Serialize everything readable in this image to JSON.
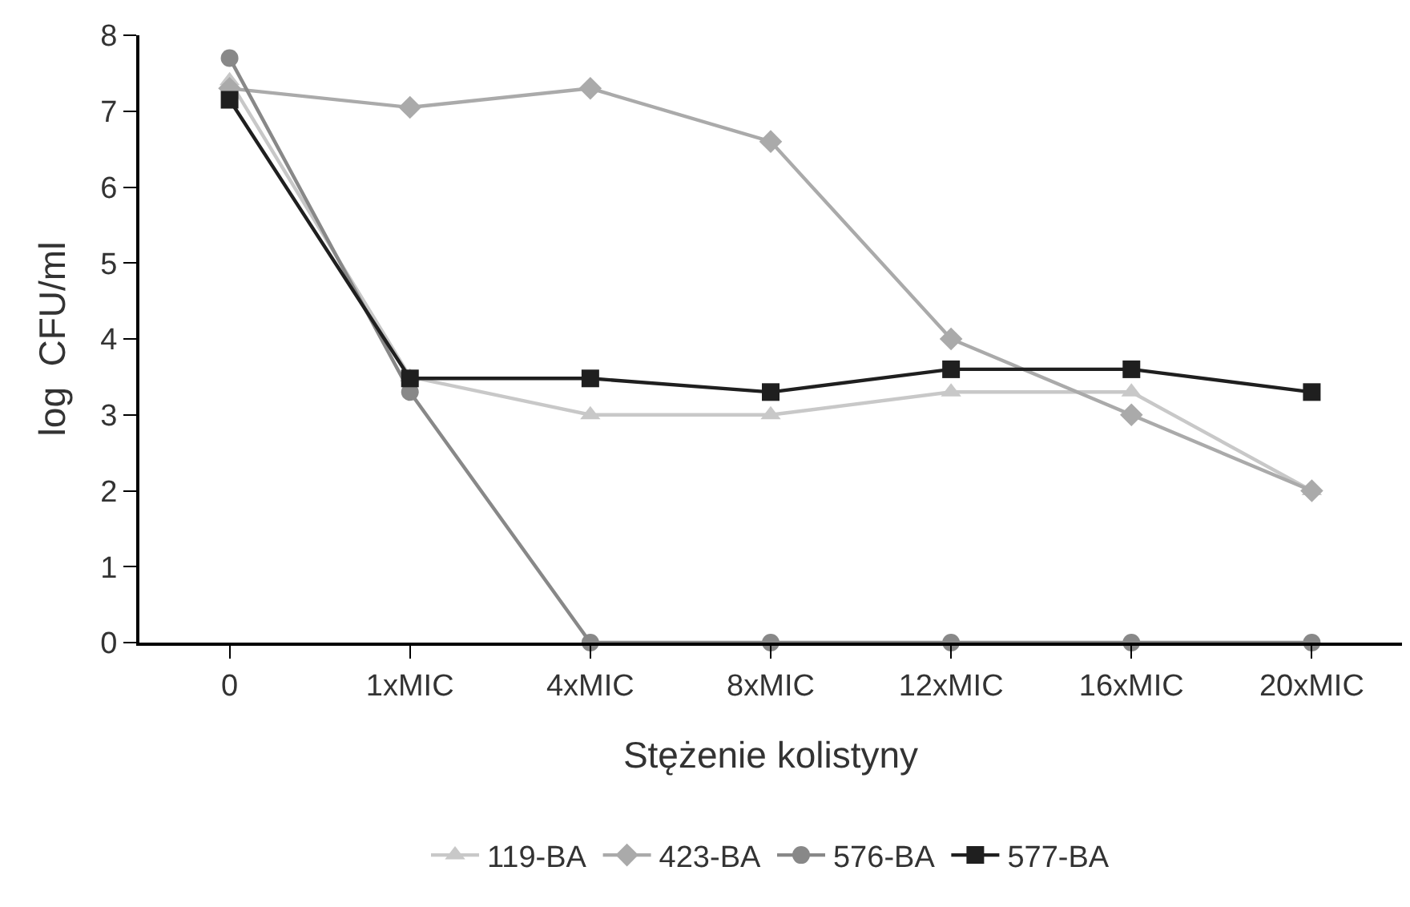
{
  "chart_data": {
    "type": "line",
    "xlabel": "Stężenie kolistyny",
    "ylabel": "log  CFU/ml",
    "categories": [
      "0",
      "1xMIC",
      "4xMIC",
      "8xMIC",
      "12xMIC",
      "16xMIC",
      "20xMIC"
    ],
    "ylim": [
      0,
      8
    ],
    "yticks": [
      0,
      1,
      2,
      3,
      4,
      5,
      6,
      7,
      8
    ],
    "legend": "bottom",
    "line_style": "solid",
    "series": [
      {
        "name": "119-BA",
        "color": "#c8c8c8",
        "marker": "triangle",
        "values": [
          7.4,
          3.5,
          3.0,
          3.0,
          3.3,
          3.3,
          2.0
        ]
      },
      {
        "name": "423-BA",
        "color": "#aaaaaa",
        "marker": "diamond",
        "values": [
          7.3,
          7.05,
          7.3,
          6.6,
          4.0,
          3.0,
          2.0
        ]
      },
      {
        "name": "576-BA",
        "color": "#888888",
        "marker": "circle",
        "values": [
          7.7,
          3.3,
          0,
          0,
          0,
          0,
          0
        ]
      },
      {
        "name": "577-BA",
        "color": "#1f1f1f",
        "marker": "square",
        "values": [
          7.15,
          3.48,
          3.48,
          3.3,
          3.6,
          3.6,
          3.3
        ]
      }
    ]
  }
}
